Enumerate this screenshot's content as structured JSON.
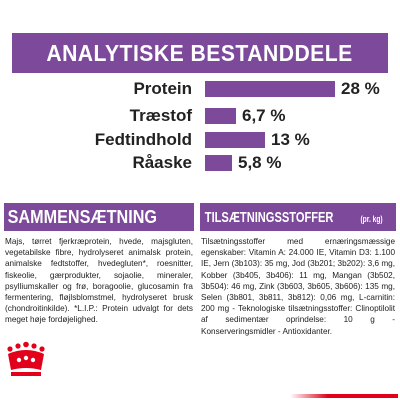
{
  "header": {
    "title": "ANALYTISKE BESTANDDELE"
  },
  "accent_color": "#7d4a9b",
  "analytics": [
    {
      "label": "Protein",
      "value_text": "28 %",
      "value": 28
    },
    {
      "label": "Træstof",
      "value_text": "6,7 %",
      "value": 6.7
    },
    {
      "label": "Fedtindhold",
      "value_text": "13 %",
      "value": 13
    },
    {
      "label": "Råaske",
      "value_text": "5,8 %",
      "value": 5.8
    }
  ],
  "composition": {
    "title": "SAMMENSÆTNING",
    "text": "Majs, tørret fjerkræprotein, hvede, majsgluten, vegetabilske fibre, hydrolyseret animalsk protein, animalske fedtstoffer, hvedegluten*, roesnitter, fiskeolie, gærprodukter, sojaolie, mineraler, psylliumskaller og frø, boragoolie, glucosamin fra fermentering, fløjlsblomstmel, hydrolyseret brusk (chondroitinkilde). *L.I.P.: Protein udvalgt for dets meget høje fordøjelighed."
  },
  "additives": {
    "title": "TILSÆTNINGSSTOFFER",
    "title_suffix": "(pr. kg)",
    "text": "Tilsætningsstoffer med ernæringsmæssige egenskaber: Vitamin A: 24.000 IE, Vitamin D3: 1.100 IE, Jern (3b103): 35 mg, Jod (3b201; 3b202): 3,6 mg, Kobber (3b405, 3b406): 11 mg, Mangan (3b502, 3b504): 46 mg, Zink (3b603, 3b605, 3b606): 135 mg, Selen (3b801, 3b811, 3b812): 0,06 mg, L-carnitin: 200 mg - Teknologiske tilsætningsstoffer: Clinoptilolit af sedimentær oprindelse: 10 g - Konserveringsmidler - Antioxidanter."
  },
  "logo": {
    "name": "crown-logo",
    "color": "#e2001a"
  }
}
